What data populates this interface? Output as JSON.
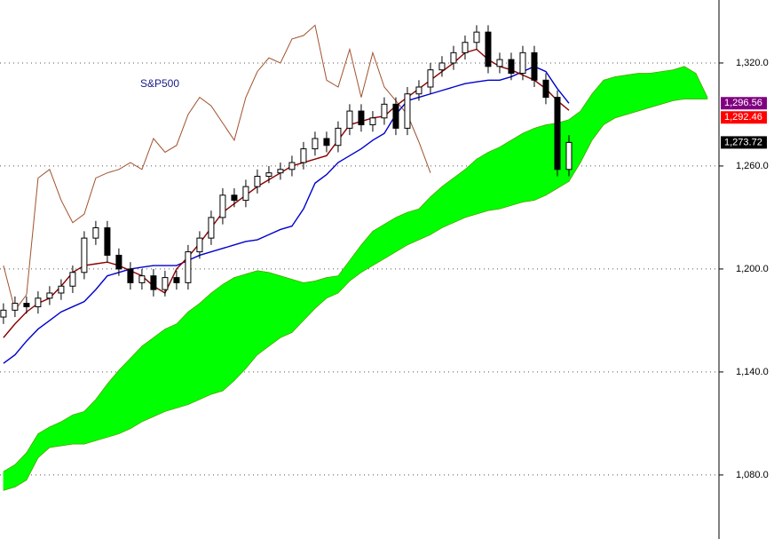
{
  "chart_data": {
    "type": "candlestick",
    "title": "S&P500",
    "title_color": "#1a1a8c",
    "x": [
      0,
      1,
      2,
      3,
      4,
      5,
      6,
      7,
      8,
      9,
      10,
      11,
      12,
      13,
      14,
      15,
      16,
      17,
      18,
      19,
      20,
      21,
      22,
      23,
      24,
      25,
      26,
      27,
      28,
      29,
      30,
      31,
      32,
      33,
      34,
      35,
      36,
      37,
      38,
      39,
      40,
      41,
      42,
      43,
      44,
      45,
      46,
      47,
      48,
      49,
      50,
      51,
      52,
      53,
      54,
      55,
      56,
      57,
      58,
      59,
      60,
      61
    ],
    "xlim": [
      -0.3,
      62
    ],
    "ylim": [
      1042.7,
      1356.7
    ],
    "yticks": [
      {
        "value": 1080,
        "label": "1,080.0"
      },
      {
        "value": 1140,
        "label": "1,140.0"
      },
      {
        "value": 1200,
        "label": "1,200.0"
      },
      {
        "value": 1260,
        "label": "1,260.0"
      },
      {
        "value": 1320,
        "label": "1,320.0"
      }
    ],
    "grid": true,
    "candles": {
      "open": [
        1172,
        1176,
        1180,
        1178,
        1183,
        1186,
        1190,
        1198,
        1218,
        1224,
        1208,
        1200,
        1192,
        1196,
        1188,
        1195,
        1192,
        1210,
        1218,
        1230,
        1243,
        1240,
        1248,
        1254,
        1256,
        1258,
        1262,
        1270,
        1276,
        1272,
        1282,
        1292,
        1284,
        1288,
        1296,
        1282,
        1302,
        1306,
        1316,
        1320,
        1326,
        1332,
        1338,
        1318,
        1322,
        1314,
        1326,
        1310,
        1300,
        1258,
        null,
        null,
        null,
        null,
        null,
        null,
        null,
        null,
        null,
        null,
        null,
        null
      ],
      "high": [
        1180,
        1184,
        1184,
        1187,
        1190,
        1194,
        1202,
        1222,
        1228,
        1228,
        1212,
        1204,
        1200,
        1200,
        1199,
        1199,
        1214,
        1222,
        1234,
        1247,
        1247,
        1252,
        1258,
        1260,
        1262,
        1266,
        1274,
        1280,
        1280,
        1286,
        1296,
        1296,
        1292,
        1300,
        1300,
        1306,
        1310,
        1320,
        1324,
        1330,
        1336,
        1342,
        1342,
        1326,
        1326,
        1330,
        1330,
        1314,
        1304,
        1278,
        null,
        null,
        null,
        null,
        null,
        null,
        null,
        null,
        null,
        null,
        null,
        null
      ],
      "low": [
        1168,
        1172,
        1174,
        1174,
        1179,
        1182,
        1186,
        1194,
        1214,
        1204,
        1196,
        1188,
        1188,
        1184,
        1184,
        1188,
        1188,
        1206,
        1214,
        1226,
        1236,
        1236,
        1244,
        1250,
        1252,
        1254,
        1258,
        1266,
        1268,
        1268,
        1278,
        1280,
        1280,
        1284,
        1278,
        1278,
        1298,
        1302,
        1312,
        1316,
        1322,
        1328,
        1314,
        1314,
        1310,
        1310,
        1306,
        1296,
        1254,
        1254,
        null,
        null,
        null,
        null,
        null,
        null,
        null,
        null,
        null,
        null,
        null,
        null
      ],
      "close": [
        1176,
        1180,
        1178,
        1183,
        1186,
        1190,
        1198,
        1218,
        1224,
        1208,
        1200,
        1192,
        1196,
        1188,
        1195,
        1192,
        1210,
        1218,
        1230,
        1243,
        1240,
        1248,
        1254,
        1256,
        1258,
        1262,
        1270,
        1276,
        1272,
        1282,
        1292,
        1284,
        1288,
        1296,
        1282,
        1302,
        1306,
        1316,
        1320,
        1326,
        1332,
        1338,
        1318,
        1322,
        1314,
        1326,
        1310,
        1300,
        1258,
        1273.72,
        null,
        null,
        null,
        null,
        null,
        null,
        null,
        null,
        null,
        null,
        null,
        null
      ],
      "up_color": "#ffffff",
      "down_color": "#000000"
    },
    "cloud": {
      "color": "#00ff00",
      "span_a": [
        1082,
        1086,
        1093,
        1104,
        1108,
        1111,
        1115,
        1117,
        1124,
        1133,
        1141,
        1148,
        1155,
        1160,
        1165,
        1168,
        1175,
        1180,
        1186,
        1191,
        1195,
        1197,
        1199,
        1198,
        1196,
        1194,
        1192,
        1193,
        1195,
        1196,
        1205,
        1214,
        1222,
        1226,
        1230,
        1233,
        1235,
        1242,
        1248,
        1253,
        1258,
        1264,
        1268,
        1271,
        1275,
        1279,
        1282,
        1284,
        1285,
        1287,
        1292,
        1302,
        1310,
        1312,
        1313,
        1314,
        1314,
        1315,
        1316,
        1318,
        1314,
        1300
      ],
      "span_b": [
        1071,
        1073,
        1077,
        1090,
        1096,
        1097,
        1098,
        1098,
        1100,
        1102,
        1104,
        1107,
        1111,
        1114,
        1117,
        1119,
        1121,
        1124,
        1127,
        1129,
        1135,
        1142,
        1150,
        1155,
        1160,
        1163,
        1170,
        1177,
        1183,
        1186,
        1193,
        1198,
        1202,
        1206,
        1210,
        1214,
        1217,
        1220,
        1224,
        1227,
        1230,
        1232,
        1234,
        1235,
        1237,
        1239,
        1240,
        1243,
        1247,
        1251,
        1262,
        1275,
        1284,
        1288,
        1290,
        1292,
        1294,
        1296,
        1298,
        1299,
        1299,
        1299
      ]
    },
    "series": [
      {
        "color": "#a0522d",
        "values": [
          1202,
          1176,
          1185,
          1253,
          1258,
          1240,
          1227,
          1232,
          1253,
          1256,
          1258,
          1262,
          1258,
          1276,
          1268,
          1272,
          1290,
          1300,
          1295,
          1285,
          1275,
          1300,
          1315,
          1323,
          1320,
          1334,
          1336,
          1342,
          1310,
          1306,
          1328,
          1300,
          1326,
          1306,
          1298,
          1290,
          1274,
          1256,
          null,
          null,
          null,
          null,
          null,
          null,
          null,
          null,
          null,
          null,
          null,
          null,
          null,
          null,
          null,
          null,
          null,
          null,
          null,
          null,
          null,
          null,
          null,
          null
        ]
      },
      {
        "color": "#0000cd",
        "values": [
          1145,
          1150,
          1158,
          1165,
          1170,
          1175,
          1178,
          1181,
          1188,
          1196,
          1198,
          1200,
          1201,
          1202,
          1202,
          1202,
          1205,
          1208,
          1210,
          1212,
          1214,
          1216,
          1217,
          1220,
          1223,
          1225,
          1235,
          1250,
          1255,
          1262,
          1266,
          1270,
          1275,
          1279,
          1290,
          1298,
          1300,
          1302,
          1304,
          1306,
          1308,
          1309,
          1310,
          1310,
          1312,
          1315,
          1318,
          1315,
          1305,
          1296.56,
          null,
          null,
          null,
          null,
          null,
          null,
          null,
          null,
          null,
          null,
          null,
          null
        ]
      },
      {
        "color": "#8b0000",
        "values": [
          1160,
          1168,
          1175,
          1180,
          1183,
          1190,
          1198,
          1202,
          1203,
          1204,
          1202,
          1199,
          1196,
          1190,
          1186,
          1200,
          1207,
          1215,
          1224,
          1233,
          1238,
          1243,
          1248,
          1252,
          1256,
          1260,
          1262,
          1264,
          1266,
          1275,
          1284,
          1286,
          1288,
          1289,
          1295,
          1300,
          1305,
          1310,
          1315,
          1320,
          1326,
          1328,
          1322,
          1318,
          1316,
          1313,
          1310,
          1305,
          1298,
          1292.46,
          null,
          null,
          null,
          null,
          null,
          null,
          null,
          null,
          null,
          null,
          null,
          null
        ]
      }
    ],
    "price_labels": [
      {
        "value": 1296.56,
        "label": "1,296.56",
        "color": "#800080"
      },
      {
        "value": 1292.46,
        "label": "1,292.46",
        "color": "#ff0000"
      },
      {
        "value": 1273.72,
        "label": "1,273.72",
        "color": "#000000"
      }
    ]
  }
}
